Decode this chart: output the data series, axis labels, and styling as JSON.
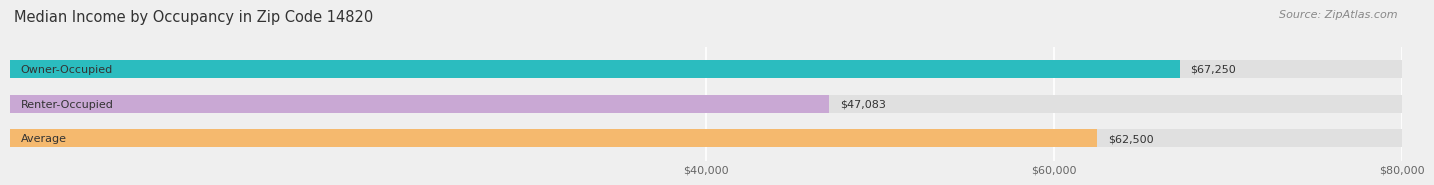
{
  "title": "Median Income by Occupancy in Zip Code 14820",
  "source": "Source: ZipAtlas.com",
  "categories": [
    "Owner-Occupied",
    "Renter-Occupied",
    "Average"
  ],
  "values": [
    67250,
    47083,
    62500
  ],
  "bar_colors": [
    "#2bbcbf",
    "#c9a8d4",
    "#f5b96e"
  ],
  "value_labels": [
    "$67,250",
    "$47,083",
    "$62,500"
  ],
  "xlim": [
    0,
    80000
  ],
  "xticks": [
    40000,
    60000,
    80000
  ],
  "xtick_labels": [
    "$40,000",
    "$60,000",
    "$80,000"
  ],
  "bg_color": "#efefef",
  "bar_bg_color": "#e0e0e0",
  "title_fontsize": 10.5,
  "source_fontsize": 8,
  "tick_fontsize": 8,
  "label_fontsize": 8,
  "value_fontsize": 8,
  "bar_height": 0.52
}
